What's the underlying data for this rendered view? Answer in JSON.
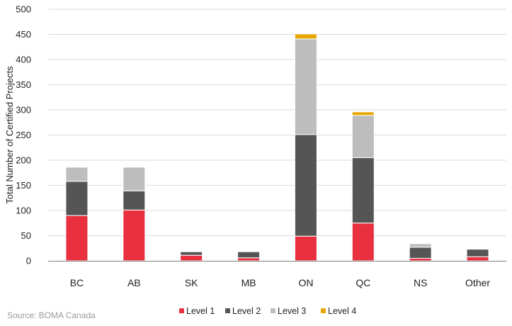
{
  "chart_data": {
    "type": "bar",
    "stacked": true,
    "categories": [
      "BC",
      "AB",
      "SK",
      "MB",
      "ON",
      "QC",
      "NS",
      "Other"
    ],
    "series": [
      {
        "name": "Level 1",
        "color": "#e8303f",
        "values": [
          90,
          101,
          11,
          6,
          49,
          75,
          5,
          8
        ]
      },
      {
        "name": "Level 2",
        "color": "#555555",
        "values": [
          68,
          38,
          7,
          12,
          202,
          130,
          22,
          15
        ]
      },
      {
        "name": "Level 3",
        "color": "#bdbdbd",
        "values": [
          28,
          47,
          0,
          0,
          190,
          84,
          7,
          0
        ]
      },
      {
        "name": "Level 4",
        "color": "#e6a800",
        "values": [
          0,
          0,
          0,
          0,
          10,
          7,
          0,
          0
        ]
      }
    ],
    "ylabel": "Total Number of Certified Projects",
    "xlabel": "",
    "ylim": [
      0,
      500
    ],
    "yticks": [
      0,
      50,
      100,
      150,
      200,
      250,
      300,
      350,
      400,
      450,
      500
    ],
    "grid": true,
    "legend_position": "bottom-center",
    "source": "Source: BOMA Canada"
  }
}
